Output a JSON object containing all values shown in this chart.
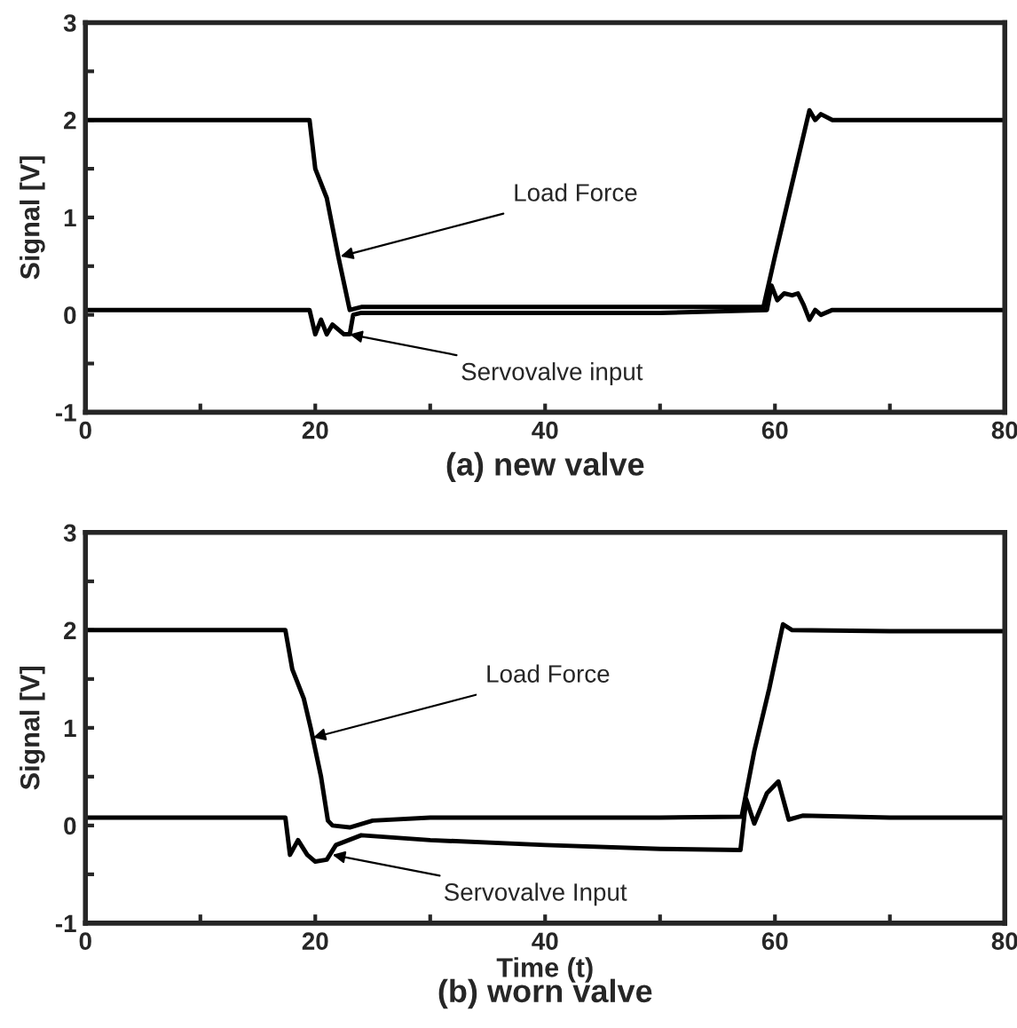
{
  "chart_data": [
    {
      "type": "line",
      "title": "(a) new valve",
      "ylabel": "Signal [V]",
      "xlim": [
        0,
        80
      ],
      "ylim": [
        -1,
        3
      ],
      "xticks": [
        0,
        {
          "value": 10,
          "label": null
        },
        20,
        {
          "value": 30,
          "label": null
        },
        40,
        {
          "value": 50,
          "label": null
        },
        60,
        {
          "value": 70,
          "label": null
        },
        80
      ],
      "yticks": [
        -1,
        {
          "value": -0.5,
          "label": null
        },
        0,
        {
          "value": 0.5,
          "label": null
        },
        1,
        {
          "value": 1.5,
          "label": null
        },
        2,
        {
          "value": 2.5,
          "label": null
        },
        3
      ],
      "grid": false,
      "legend": false,
      "series": [
        {
          "color": "#000000",
          "x": [
            0,
            10,
            19.5,
            20,
            21,
            22,
            23,
            24,
            30,
            40,
            50,
            59,
            60,
            61,
            62,
            63,
            63.5,
            64,
            65,
            70,
            80
          ],
          "values": [
            2.0,
            2.0,
            2.0,
            1.5,
            1.2,
            0.6,
            0.05,
            0.08,
            0.08,
            0.08,
            0.08,
            0.08,
            0.6,
            1.1,
            1.6,
            2.1,
            2.0,
            2.06,
            2.0,
            2.0,
            2.0
          ]
        },
        {
          "color": "#000000",
          "x": [
            0,
            10,
            19.5,
            20,
            20.5,
            21,
            21.5,
            22,
            22.5,
            23,
            23.3,
            24,
            30,
            40,
            50,
            59.3,
            59.7,
            60.2,
            60.8,
            61.5,
            62,
            62.5,
            63,
            63.5,
            64,
            65,
            70,
            80
          ],
          "values": [
            0.05,
            0.05,
            0.05,
            -0.2,
            -0.05,
            -0.2,
            -0.1,
            -0.15,
            -0.2,
            -0.2,
            0.0,
            0.02,
            0.02,
            0.02,
            0.02,
            0.05,
            0.3,
            0.15,
            0.22,
            0.2,
            0.22,
            0.1,
            -0.05,
            0.05,
            0.0,
            0.05,
            0.05,
            0.05
          ]
        }
      ],
      "annotations": [
        {
          "text": "Load Force",
          "x": 22.2,
          "y": 0.6
        },
        {
          "text": "Servovalve input",
          "x": 23,
          "y": -0.2
        }
      ]
    },
    {
      "type": "line",
      "title": "(b) worn valve",
      "xlabel": "Time (t)",
      "ylabel": "Signal [V]",
      "xlim": [
        0,
        80
      ],
      "ylim": [
        -1,
        3
      ],
      "xticks": [
        0,
        {
          "value": 10,
          "label": null
        },
        20,
        {
          "value": 30,
          "label": null
        },
        40,
        {
          "value": 50,
          "label": null
        },
        60,
        {
          "value": 70,
          "label": null
        },
        80
      ],
      "yticks": [
        -1,
        {
          "value": -0.5,
          "label": null
        },
        0,
        {
          "value": 0.5,
          "label": null
        },
        1,
        {
          "value": 1.5,
          "label": null
        },
        2,
        {
          "value": 2.5,
          "label": null
        },
        3
      ],
      "grid": false,
      "legend": false,
      "series": [
        {
          "color": "#000000",
          "x": [
            0,
            10,
            17.4,
            18,
            19,
            19.6,
            20.5,
            21.1,
            21.5,
            23,
            25,
            30,
            40,
            50,
            57.1,
            58.2,
            59.5,
            60.7,
            61.5,
            70,
            80
          ],
          "values": [
            2.0,
            2.0,
            2.0,
            1.6,
            1.3,
            1.0,
            0.5,
            0.05,
            0.0,
            -0.02,
            0.05,
            0.08,
            0.08,
            0.08,
            0.09,
            0.76,
            1.4,
            2.06,
            2.0,
            1.99,
            1.99
          ]
        },
        {
          "color": "#000000",
          "x": [
            0,
            10,
            17.4,
            17.8,
            18.5,
            19.3,
            20,
            21,
            21.8,
            24,
            30,
            40,
            50,
            57.0,
            57.5,
            58.2,
            59.3,
            60.3,
            61.2,
            62.4,
            70,
            80
          ],
          "values": [
            0.08,
            0.08,
            0.08,
            -0.3,
            -0.15,
            -0.3,
            -0.37,
            -0.35,
            -0.2,
            -0.1,
            -0.15,
            -0.2,
            -0.24,
            -0.25,
            0.27,
            0.02,
            0.33,
            0.45,
            0.06,
            0.1,
            0.08,
            0.08
          ]
        }
      ],
      "annotations": [
        {
          "text": "Load Force",
          "x": 19.8,
          "y": 0.9
        },
        {
          "text": "Servovalve Input",
          "x": 21.5,
          "y": -0.3
        }
      ]
    }
  ]
}
